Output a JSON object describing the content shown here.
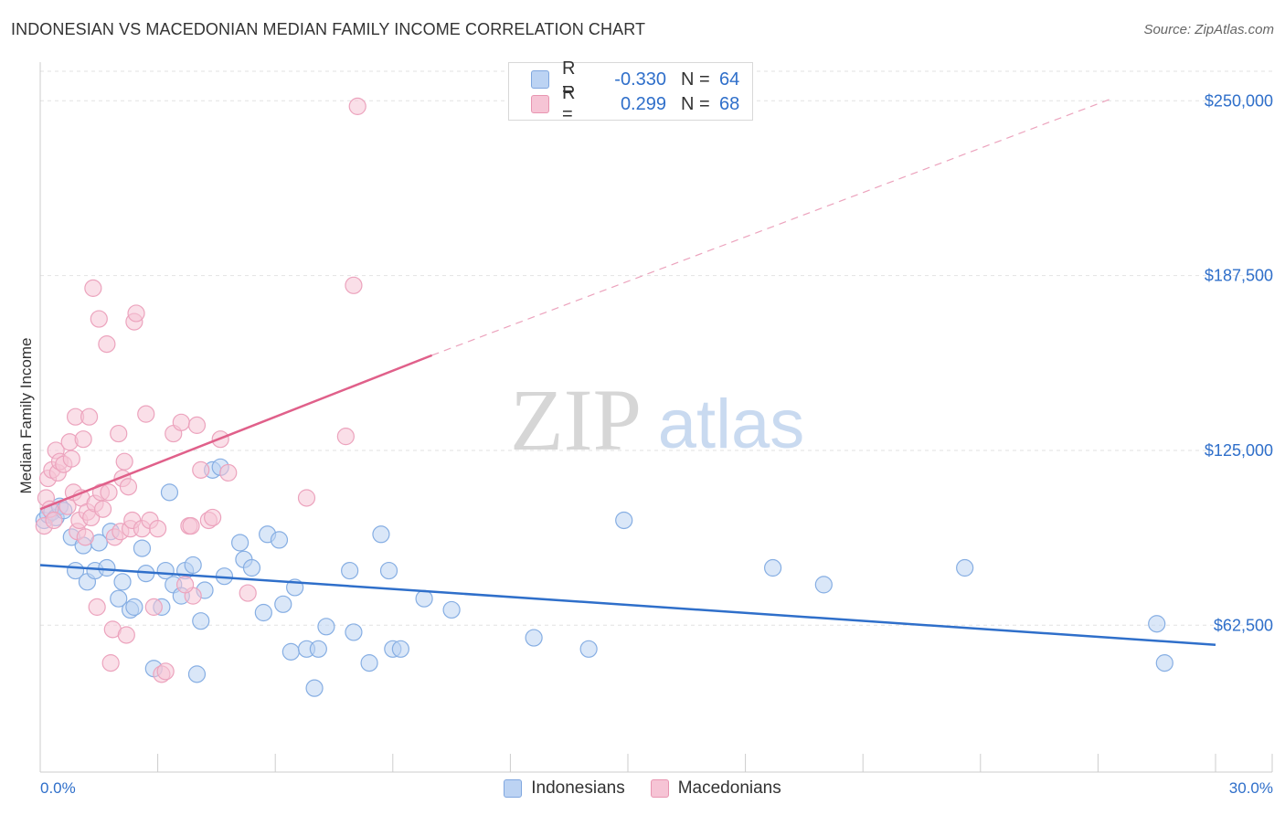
{
  "title": "INDONESIAN VS MACEDONIAN MEDIAN FAMILY INCOME CORRELATION CHART",
  "source": "Source: ZipAtlas.com",
  "watermark": {
    "zip": "ZIP",
    "atlas": "atlas"
  },
  "colors": {
    "indonesians": "#2f6fca",
    "macedonians": "#e0608a",
    "ind_fill": "#bcd3f3",
    "mac_fill": "#f6c4d5",
    "axis_text": "#2f6fca",
    "grid": "#e2e2e2"
  },
  "legend": {
    "rows": [
      {
        "r_label": "R =",
        "r_value": "-0.330",
        "n_label": "N =",
        "n_value": "64"
      },
      {
        "r_label": "R =",
        "r_value": "0.299",
        "n_label": "N =",
        "n_value": "68"
      }
    ]
  },
  "bottom_legend": [
    "Indonesians",
    "Macedonians"
  ],
  "chart_data": {
    "type": "scatter",
    "title": "INDONESIAN VS MACEDONIAN MEDIAN FAMILY INCOME CORRELATION CHART",
    "xlabel": "",
    "ylabel": "Median Family Income",
    "xlim": [
      0,
      30
    ],
    "ylim": [
      10000,
      262500
    ],
    "x_tick_labels": [
      "0.0%",
      "30.0%"
    ],
    "y_ticks": [
      62500,
      125000,
      187500,
      250000
    ],
    "y_tick_labels": [
      "$62,500",
      "$125,000",
      "$187,500",
      "$250,000"
    ],
    "series": [
      {
        "name": "Indonesians",
        "r": -0.33,
        "n": 64,
        "trend": {
          "x": [
            0,
            30
          ],
          "y": [
            84000,
            55500
          ],
          "dashed_to": null
        },
        "points": [
          [
            0.1,
            100000
          ],
          [
            0.2,
            102000
          ],
          [
            0.3,
            103000
          ],
          [
            0.4,
            101000
          ],
          [
            0.5,
            105000
          ],
          [
            0.6,
            103500
          ],
          [
            0.8,
            94000
          ],
          [
            0.9,
            82000
          ],
          [
            1.1,
            91000
          ],
          [
            1.2,
            78000
          ],
          [
            1.4,
            82000
          ],
          [
            1.5,
            92000
          ],
          [
            1.7,
            83000
          ],
          [
            1.8,
            96000
          ],
          [
            2.0,
            72000
          ],
          [
            2.1,
            78000
          ],
          [
            2.3,
            68000
          ],
          [
            2.4,
            69000
          ],
          [
            2.6,
            90000
          ],
          [
            2.7,
            81000
          ],
          [
            2.9,
            47000
          ],
          [
            3.1,
            69000
          ],
          [
            3.3,
            110000
          ],
          [
            3.2,
            82000
          ],
          [
            3.4,
            77000
          ],
          [
            3.6,
            73000
          ],
          [
            3.7,
            82000
          ],
          [
            3.9,
            84000
          ],
          [
            4.0,
            45000
          ],
          [
            4.1,
            64000
          ],
          [
            4.2,
            75000
          ],
          [
            4.4,
            118000
          ],
          [
            4.6,
            119000
          ],
          [
            4.7,
            80000
          ],
          [
            5.1,
            92000
          ],
          [
            5.2,
            86000
          ],
          [
            5.4,
            83000
          ],
          [
            5.7,
            67000
          ],
          [
            5.8,
            95000
          ],
          [
            6.1,
            93000
          ],
          [
            6.2,
            70000
          ],
          [
            6.4,
            53000
          ],
          [
            6.5,
            76000
          ],
          [
            6.8,
            54000
          ],
          [
            7.0,
            40000
          ],
          [
            7.1,
            54000
          ],
          [
            7.3,
            62000
          ],
          [
            7.9,
            82000
          ],
          [
            8.0,
            60000
          ],
          [
            8.4,
            49000
          ],
          [
            8.7,
            95000
          ],
          [
            8.9,
            82000
          ],
          [
            9.0,
            54000
          ],
          [
            9.2,
            54000
          ],
          [
            9.8,
            72000
          ],
          [
            10.5,
            68000
          ],
          [
            12.6,
            58000
          ],
          [
            14.0,
            54000
          ],
          [
            14.9,
            100000
          ],
          [
            18.7,
            83000
          ],
          [
            20.0,
            77000
          ],
          [
            23.6,
            83000
          ],
          [
            28.5,
            63000
          ],
          [
            28.7,
            49000
          ]
        ]
      },
      {
        "name": "Macedonians",
        "r": 0.299,
        "n": 68,
        "trend": {
          "x": [
            0,
            10
          ],
          "y": [
            104000,
            159000
          ],
          "dashed_to": [
            27.3,
            250500
          ]
        },
        "points": [
          [
            0.1,
            98000
          ],
          [
            0.15,
            108000
          ],
          [
            0.2,
            115000
          ],
          [
            0.25,
            104000
          ],
          [
            0.3,
            118000
          ],
          [
            0.35,
            100000
          ],
          [
            0.4,
            125000
          ],
          [
            0.45,
            117000
          ],
          [
            0.5,
            121000
          ],
          [
            0.6,
            120000
          ],
          [
            0.7,
            105000
          ],
          [
            0.75,
            128000
          ],
          [
            0.8,
            122000
          ],
          [
            0.85,
            110000
          ],
          [
            0.9,
            137000
          ],
          [
            0.95,
            96000
          ],
          [
            1.0,
            100000
          ],
          [
            1.05,
            108000
          ],
          [
            1.1,
            129000
          ],
          [
            1.15,
            94000
          ],
          [
            1.2,
            103000
          ],
          [
            1.25,
            137000
          ],
          [
            1.3,
            101000
          ],
          [
            1.35,
            183000
          ],
          [
            1.4,
            106000
          ],
          [
            1.45,
            69000
          ],
          [
            1.5,
            172000
          ],
          [
            1.55,
            110000
          ],
          [
            1.6,
            104000
          ],
          [
            1.7,
            163000
          ],
          [
            1.75,
            110000
          ],
          [
            1.8,
            49000
          ],
          [
            1.85,
            61000
          ],
          [
            1.9,
            94000
          ],
          [
            2.0,
            131000
          ],
          [
            2.05,
            96000
          ],
          [
            2.1,
            115000
          ],
          [
            2.15,
            121000
          ],
          [
            2.2,
            59000
          ],
          [
            2.25,
            112000
          ],
          [
            2.3,
            97000
          ],
          [
            2.35,
            100000
          ],
          [
            2.4,
            171000
          ],
          [
            2.45,
            174000
          ],
          [
            2.6,
            97000
          ],
          [
            2.7,
            138000
          ],
          [
            2.8,
            100000
          ],
          [
            2.9,
            69000
          ],
          [
            3.0,
            97000
          ],
          [
            3.1,
            45000
          ],
          [
            3.2,
            46000
          ],
          [
            3.4,
            131000
          ],
          [
            3.6,
            135000
          ],
          [
            3.8,
            98000
          ],
          [
            3.85,
            98000
          ],
          [
            3.9,
            73000
          ],
          [
            4.0,
            134000
          ],
          [
            4.1,
            118000
          ],
          [
            4.3,
            100000
          ],
          [
            4.4,
            101000
          ],
          [
            4.6,
            129000
          ],
          [
            4.8,
            117000
          ],
          [
            5.3,
            74000
          ],
          [
            6.8,
            108000
          ],
          [
            7.8,
            130000
          ],
          [
            8.0,
            184000
          ],
          [
            8.1,
            248000
          ],
          [
            3.7,
            77000
          ]
        ]
      }
    ]
  }
}
